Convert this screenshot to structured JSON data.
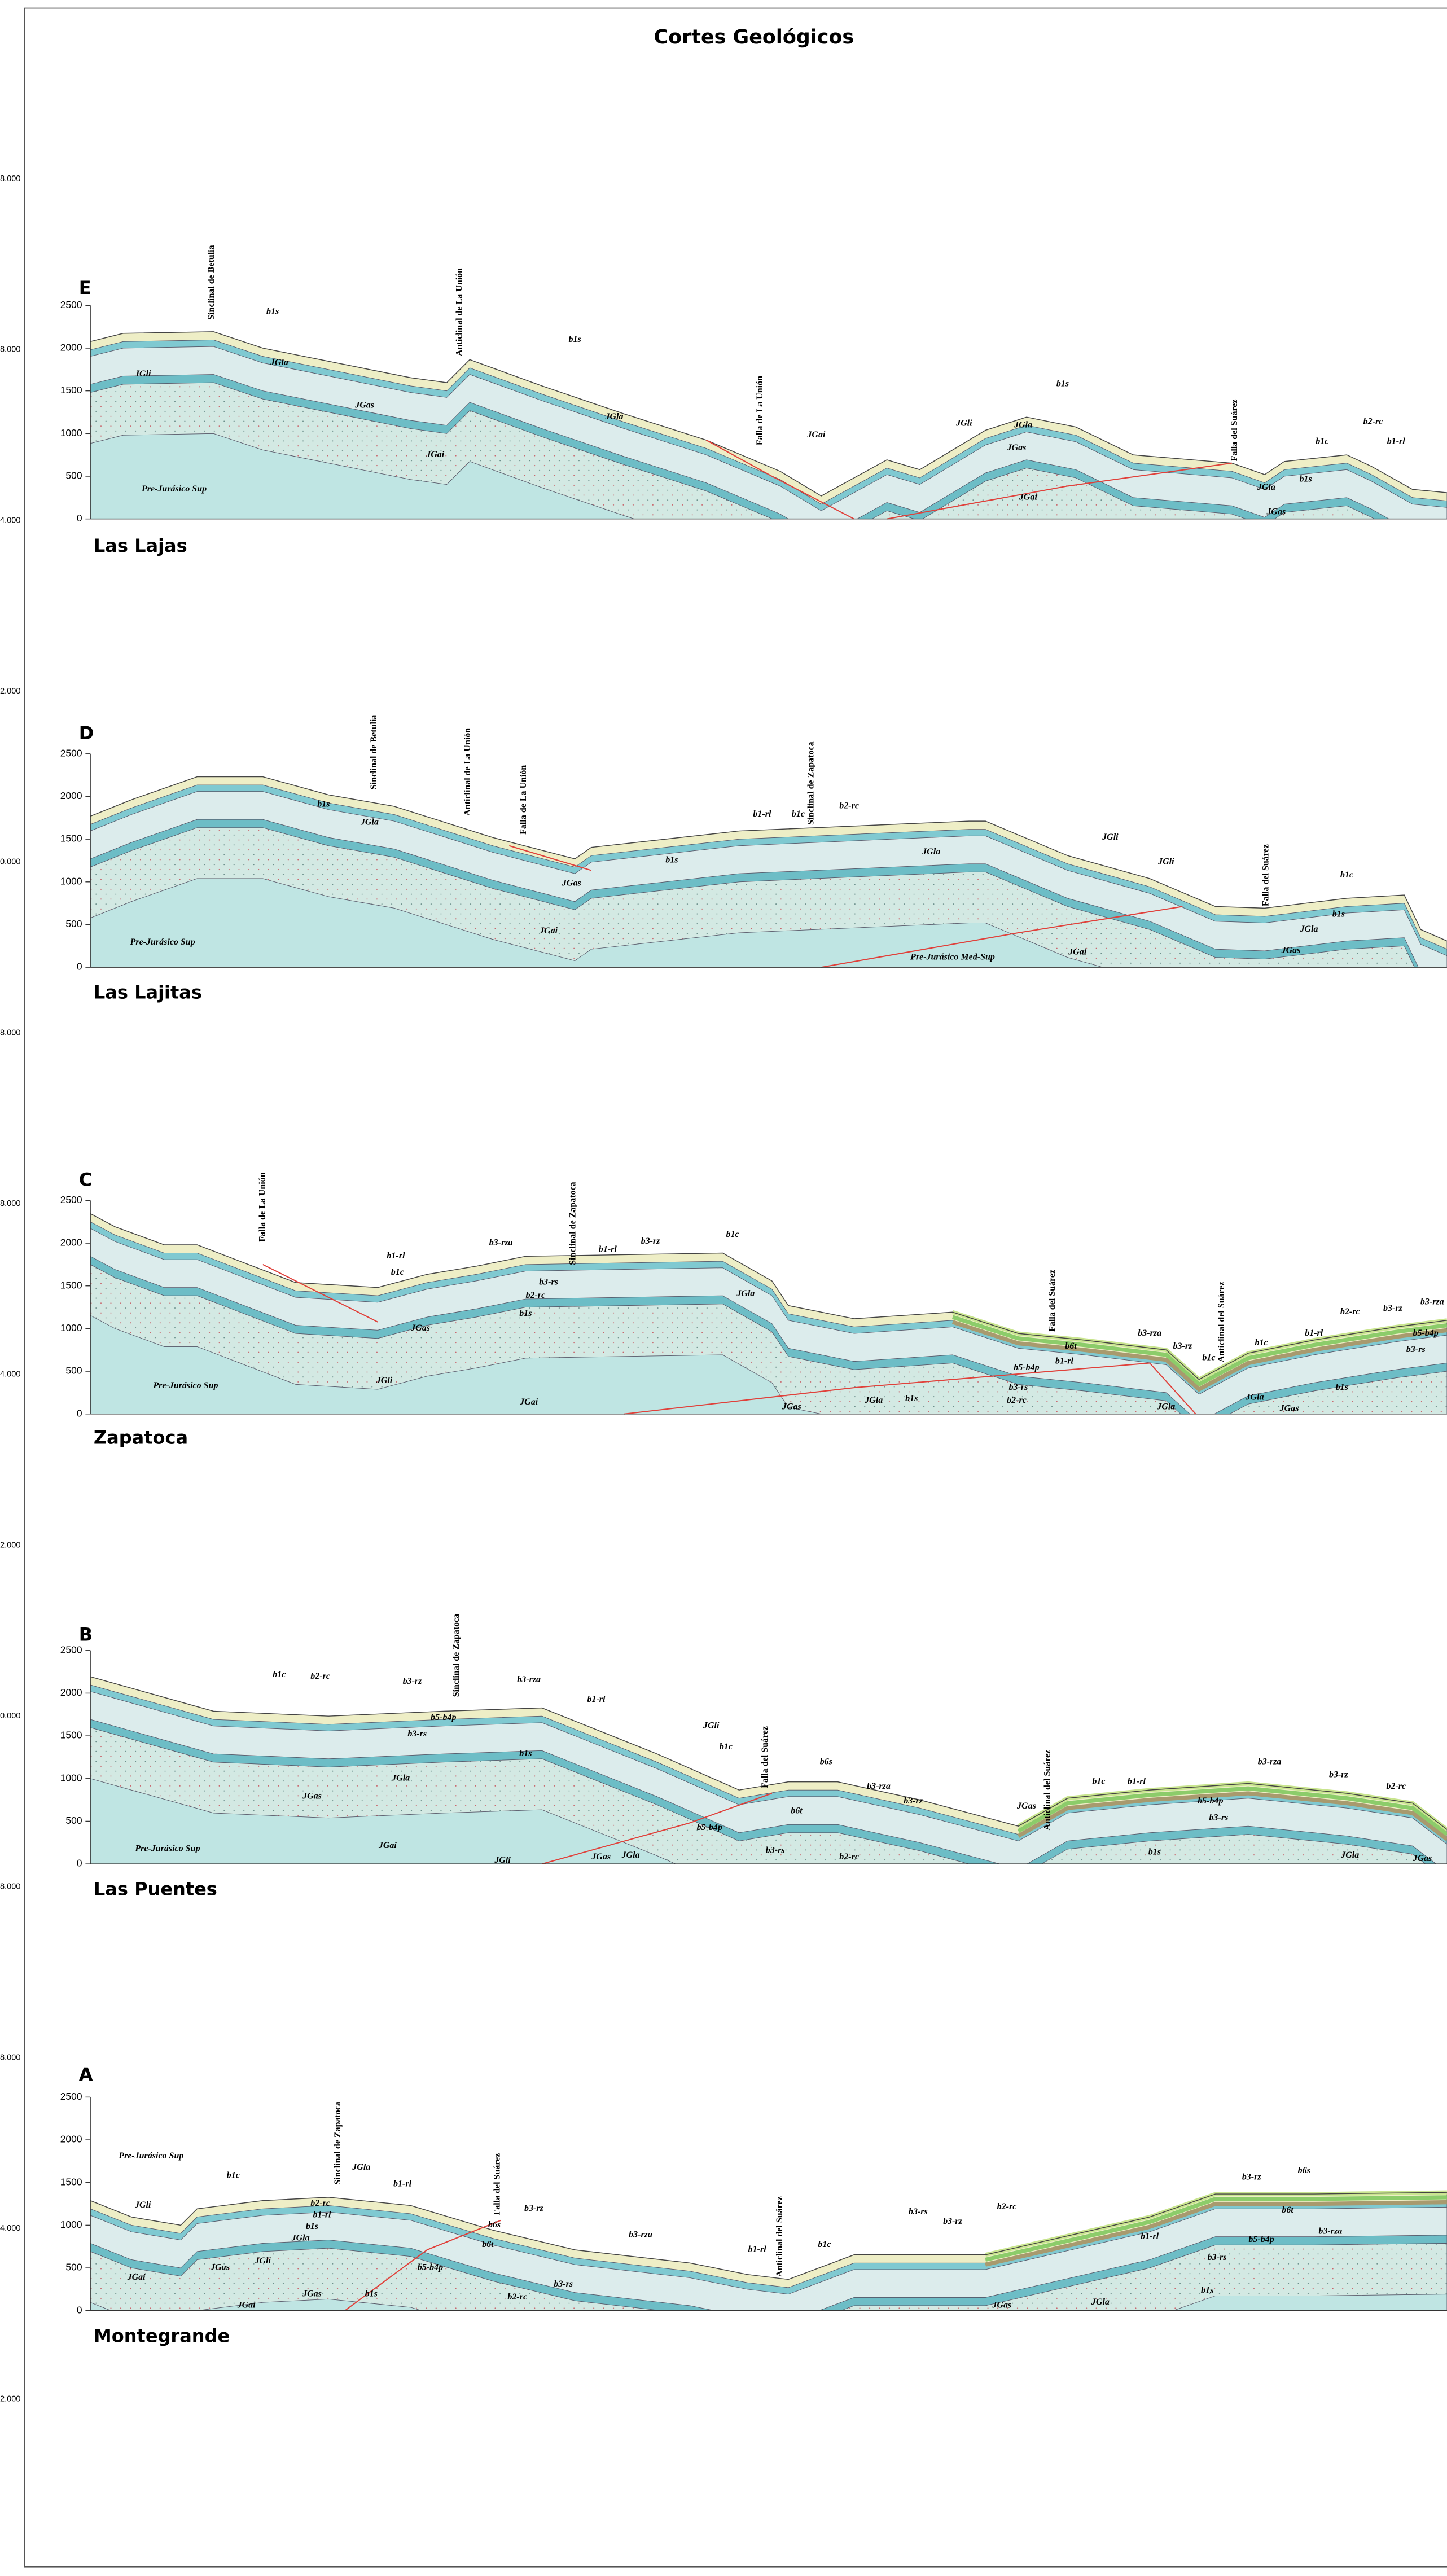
{
  "title": "Cortes Geológicos",
  "edge_labels": [
    "8.000",
    "8.000",
    "4.000",
    "2.000",
    "0.000",
    "8.000",
    "8.000",
    "4.000",
    "2.000",
    "0.000",
    "8.000",
    "8.000",
    "4.000",
    "2.000"
  ],
  "sections": [
    {
      "letter": "E",
      "name": "Las Lajas",
      "yticks": [
        0,
        500,
        1000,
        1500,
        2000,
        2500
      ],
      "structures": [
        "Sinclinal de Betulia",
        "Anticlinal de La Unión",
        "Falla de La Unión",
        "Falla del Suárez"
      ],
      "labels": [
        "b1s",
        "b1s",
        "JGla",
        "JGli",
        "JGas",
        "JGla",
        "JGai",
        "Pre-Jurásico Sup",
        "JGai",
        "JGli",
        "b1s",
        "JGla",
        "JGas",
        "JGai",
        "b1c",
        "b2-rc",
        "b1-rl",
        "b1s",
        "JGla",
        "JGas"
      ]
    },
    {
      "letter": "D",
      "name": "Las Lajitas",
      "yticks": [
        0,
        500,
        1000,
        1500,
        2000,
        2500
      ],
      "structures": [
        "Sinclinal de  Betulia",
        "Anticlinal de La Unión",
        "Falla de La Unión",
        "Sinclinal de Zapatoca",
        "Falla del Suárez"
      ],
      "labels": [
        "b1s",
        "JGla",
        "JGas",
        "JGai",
        "Pre-Jurásico Sup",
        "b1-rl",
        "b1c",
        "b2-rc",
        "b1s",
        "JGla",
        "JGli",
        "JGli",
        "Pre-Jurásico Med-Sup",
        "JGai",
        "b1c",
        "b1s",
        "JGla",
        "JGas"
      ]
    },
    {
      "letter": "C",
      "name": "Zapatoca",
      "yticks": [
        0,
        500,
        1000,
        1500,
        2000,
        2500
      ],
      "structures": [
        "Falla de La Unión",
        "Sinclinal de Zapatoca",
        "Falla del Suárez",
        "Anticlinal del Suárez"
      ],
      "labels": [
        "b1-rl",
        "b1c",
        "b3-rza",
        "b3-rz",
        "b1-rl",
        "b1c",
        "b3-rs",
        "b2-rc",
        "b1s",
        "JGla",
        "JGas",
        "JGli",
        "JGai",
        "Pre-Jurásico Sup",
        "JGas",
        "JGla",
        "b1s",
        "b6t",
        "b5-b4p",
        "b1-rl",
        "b3-rs",
        "b2-rc",
        "b3-rza",
        "b3-rz",
        "b1c",
        "JGla",
        "b1c",
        "b1-rl",
        "b2-rc",
        "b3-rz",
        "b3-rza",
        "b5-b4p",
        "b3-rs",
        "JGla",
        "b1s",
        "JGas"
      ]
    },
    {
      "letter": "B",
      "name": "Las Puentes",
      "yticks": [
        0,
        500,
        1000,
        1500,
        2000,
        2500
      ],
      "structures": [
        "Sinclinal de Zapatoca",
        "Falla del Suárez",
        "Anticlinal del Suárez"
      ],
      "labels": [
        "b1c",
        "b2-rc",
        "b3-rz",
        "b3-rza",
        "b1-rl",
        "b5-b4p",
        "b3-rs",
        "b1s",
        "JGla",
        "JGas",
        "JGai",
        "Pre-Jurásico Sup",
        "JGli",
        "JGas",
        "JGla",
        "JGli",
        "b1c",
        "b6s",
        "b6t",
        "b3-rza",
        "b3-rz",
        "b5-b4p",
        "b3-rs",
        "b2-rc",
        "JGas",
        "b1c",
        "b1-rl",
        "b3-rza",
        "b3-rz",
        "b2-rc",
        "b5-b4p",
        "b3-rs",
        "b1s",
        "JGla",
        "JGas"
      ]
    },
    {
      "letter": "A",
      "name": "Montegrande",
      "yticks": [
        0,
        500,
        1000,
        1500,
        2000,
        2500
      ],
      "structures": [
        "Sinclinal de  Zapatoca",
        "Falla del Suárez",
        "Anticlinal del Suárez"
      ],
      "labels": [
        "Pre-Jurásico Sup",
        "JGli",
        "JGai",
        "JGas",
        "JGli",
        "b1c",
        "b2-rc",
        "b1-rl",
        "b1s",
        "JGla",
        "JGla",
        "JGas",
        "JGai",
        "b1s",
        "b1-rl",
        "b6s",
        "b6t",
        "b3-rz",
        "b5-b4p",
        "b3-rs",
        "b2-rc",
        "b3-rza",
        "b1-rl",
        "b1c",
        "b3-rs",
        "b3-rz",
        "b2-rc",
        "b3-rz",
        "b6s",
        "b6t",
        "b1-rl",
        "b5-b4p",
        "b3-rza",
        "b3-rs",
        "b1s",
        "JGas",
        "JGla"
      ]
    }
  ]
}
